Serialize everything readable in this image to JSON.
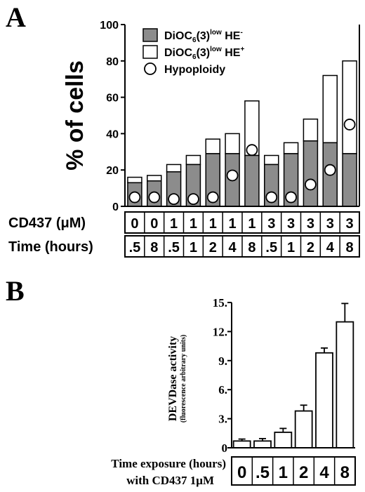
{
  "chart_data": [
    {
      "panel": "A",
      "type": "bar",
      "ylabel": "% of cells",
      "ylim": [
        0,
        100
      ],
      "yticks": [
        "0",
        "20",
        "40",
        "60",
        "80",
        "100"
      ],
      "legend": {
        "placement": "top-left",
        "entries": [
          {
            "base": "DiOC",
            "sub": "6",
            "mid": "(3)",
            "sup": "low",
            "tail": " HE",
            "sup2": "-"
          },
          {
            "base": "DiOC",
            "sub": "6",
            "mid": "(3)",
            "sup": "low",
            "tail": " HE",
            "sup2": "+"
          },
          {
            "text": "Hypoploidy"
          }
        ]
      },
      "series": [
        {
          "name": "DiOC6(3)low HE-",
          "color": "#8c8c8c",
          "values": [
            13,
            14,
            19,
            23,
            29,
            29,
            28,
            23,
            29,
            36,
            35,
            29
          ]
        },
        {
          "name": "DiOC6(3)low HE+",
          "color": "#ffffff",
          "values": [
            3,
            3,
            4,
            5,
            8,
            11,
            30,
            5,
            6,
            12,
            37,
            51
          ]
        },
        {
          "name": "Hypoploidy",
          "color": "#ffffff",
          "values": [
            5,
            5,
            4,
            4,
            5,
            17,
            31,
            5,
            5,
            12,
            20,
            45
          ]
        }
      ],
      "table": {
        "rows": [
          {
            "label": "CD437 (μM)",
            "cells": [
              "0",
              "0",
              "1",
              "1",
              "1",
              "1",
              "1",
              "3",
              "3",
              "3",
              "3",
              "3"
            ]
          },
          {
            "label": "Time (hours)",
            "cells": [
              ".5",
              "8",
              ".5",
              "1",
              "2",
              "4",
              "8",
              ".5",
              "1",
              "2",
              "4",
              "8"
            ]
          }
        ]
      }
    },
    {
      "panel": "B",
      "type": "bar",
      "ylabel": "DEVDase activity",
      "ylabel_sub": "(fluorescence arbitrary units)",
      "ylim": [
        0,
        15
      ],
      "yticks": [
        "0",
        "3.",
        "6.",
        "9.",
        "12.",
        "15."
      ],
      "categories": [
        "0",
        ".5",
        "1",
        "2",
        "4",
        "8"
      ],
      "values": [
        0.7,
        0.7,
        1.6,
        3.8,
        9.8,
        13.0
      ],
      "errors": [
        0.2,
        0.25,
        0.4,
        0.6,
        0.5,
        1.9
      ],
      "xlabel_line1": "Time exposure (hours)",
      "xlabel_line2": "with CD437 1μM"
    }
  ]
}
